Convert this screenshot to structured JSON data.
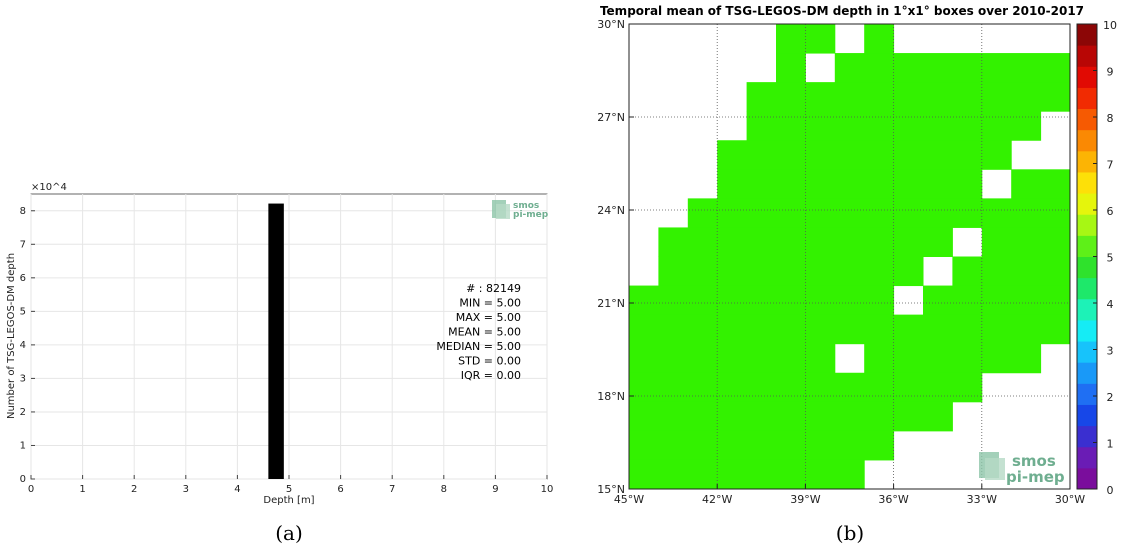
{
  "chart_data": [
    {
      "type": "bar",
      "panel_label": "(a)",
      "title": "",
      "xlabel": "Depth [m]",
      "ylabel": "Number of TSG-LEGOS-DM depth",
      "y_exponent_label": "×10^4",
      "xlim": [
        0,
        10
      ],
      "ylim": [
        0,
        8.5
      ],
      "xticks": [
        "0",
        "1",
        "2",
        "3",
        "4",
        "5",
        "6",
        "7",
        "8",
        "9",
        "10"
      ],
      "yticks": [
        "0",
        "1",
        "2",
        "3",
        "4",
        "5",
        "6",
        "7",
        "8"
      ],
      "grid": true,
      "bars": [
        {
          "x_start": 4.6,
          "x_end": 4.9,
          "value": 8.2149
        }
      ],
      "bar_color": "#000000",
      "stats": [
        "# : 82149",
        "MIN = 5.00",
        "MAX =  5.00",
        "MEAN = 5.00",
        "MEDIAN = 5.00",
        "STD = 0.00",
        "IQR = 0.00"
      ],
      "logo": [
        "smos",
        "pi-mep"
      ]
    },
    {
      "type": "heatmap",
      "panel_label": "(b)",
      "title": "Temporal mean of TSG-LEGOS-DM depth in 1°x1° boxes over 2010-2017",
      "x_range_deg": [
        -45,
        -30
      ],
      "y_range_deg": [
        15,
        30
      ],
      "xticks": [
        "45°W",
        "42°W",
        "39°W",
        "36°W",
        "33°W",
        "30°W"
      ],
      "yticks": [
        "15°N",
        "18°N",
        "21°N",
        "24°N",
        "27°N",
        "30°N"
      ],
      "grid": true,
      "colorbar_range": [
        0,
        10
      ],
      "colorbar_ticks": [
        "0",
        "1",
        "2",
        "3",
        "4",
        "5",
        "6",
        "7",
        "8",
        "9",
        "10"
      ],
      "colorbar_colors": [
        "#7a0d9c",
        "#6a1cb5",
        "#3a2fd0",
        "#1747e8",
        "#1f6ff3",
        "#1999f8",
        "#17c3fb",
        "#15ecf5",
        "#1df2b7",
        "#1ee86a",
        "#2fe22c",
        "#5ef018",
        "#a7f714",
        "#e5f50c",
        "#fde008",
        "#fcb404",
        "#fa8903",
        "#f65a02",
        "#f12b02",
        "#e10a03",
        "#b80605",
        "#8c0606"
      ],
      "cell_value": 5,
      "cell_color": "#33f200",
      "rows_top_to_bottom": [
        [
          [
            5,
            7
          ],
          [
            8,
            9
          ]
        ],
        [
          [
            5,
            6
          ],
          [
            7,
            15
          ]
        ],
        [
          [
            4,
            15
          ]
        ],
        [
          [
            4,
            14
          ]
        ],
        [
          [
            3,
            13
          ]
        ],
        [
          [
            3,
            12
          ],
          [
            13,
            15
          ]
        ],
        [
          [
            2,
            15
          ]
        ],
        [
          [
            1,
            11
          ],
          [
            12,
            15
          ]
        ],
        [
          [
            1,
            10
          ],
          [
            11,
            15
          ]
        ],
        [
          [
            0,
            9
          ],
          [
            10,
            15
          ]
        ],
        [
          [
            0,
            15
          ]
        ],
        [
          [
            0,
            7
          ],
          [
            8,
            14
          ]
        ],
        [
          [
            0,
            12
          ]
        ],
        [
          [
            0,
            11
          ]
        ],
        [
          [
            0,
            9
          ]
        ],
        [
          [
            0,
            8
          ]
        ]
      ],
      "logo": [
        "smos",
        "pi-mep"
      ]
    }
  ]
}
